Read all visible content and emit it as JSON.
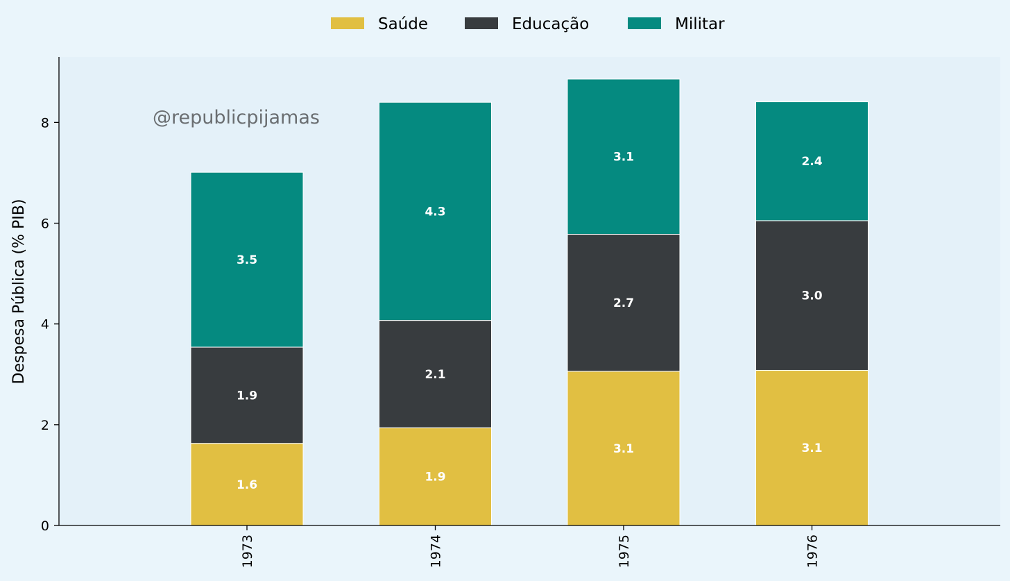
{
  "chart_data": {
    "type": "bar",
    "stacked": true,
    "categories": [
      "1973",
      "1974",
      "1975",
      "1976"
    ],
    "series": [
      {
        "name": "Saúde",
        "color": "#e1bf42",
        "values": [
          1.63,
          1.94,
          3.06,
          3.08
        ],
        "labels": [
          "1.6",
          "1.9",
          "3.1",
          "3.1"
        ]
      },
      {
        "name": "Educação",
        "color": "#383c3f",
        "values": [
          1.91,
          2.13,
          2.72,
          2.97
        ],
        "labels": [
          "1.9",
          "2.1",
          "2.7",
          "3.0"
        ]
      },
      {
        "name": "Militar",
        "color": "#058a80",
        "values": [
          3.47,
          4.33,
          3.08,
          2.36
        ],
        "labels": [
          "3.5",
          "4.3",
          "3.1",
          "2.4"
        ]
      }
    ],
    "title": "",
    "xlabel": "",
    "ylabel": "Despesa Pública (% PIB)",
    "ylim": [
      0,
      9.3
    ],
    "yticks": [
      0,
      2,
      4,
      6,
      8
    ],
    "ytick_labels": [
      "0",
      "2",
      "4",
      "6",
      "8"
    ],
    "legend_position": "top-center",
    "watermark": "@republicpijamas"
  },
  "colors": {
    "page_background": "#eaf5fb",
    "plot_background": "#e4f1f9",
    "axis": "#000000",
    "label_text": "#ffffff",
    "watermark_text": "#6a6e71"
  }
}
